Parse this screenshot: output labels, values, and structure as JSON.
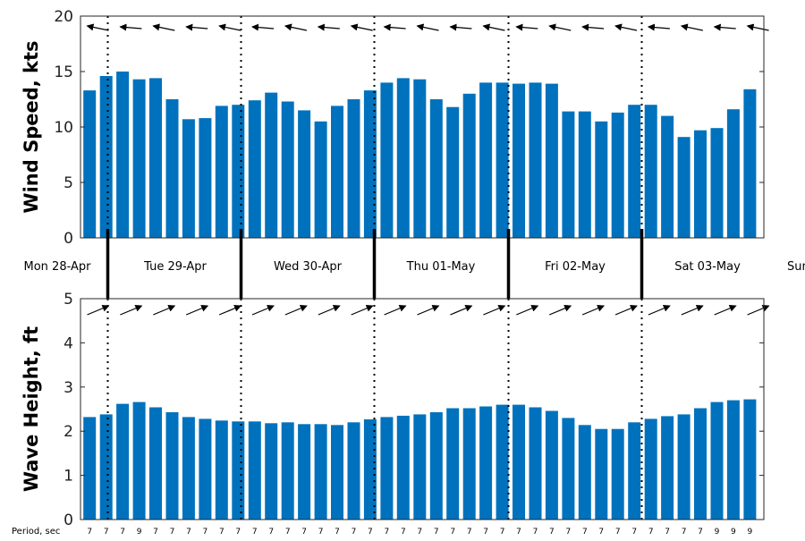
{
  "day_labels": [
    "Mon 28-Apr",
    "Tue 29-Apr",
    "Wed 30-Apr",
    "Thu 01-May",
    "Fri 02-May",
    "Sat 03-May",
    "Sun"
  ],
  "period_label": "Period, sec",
  "colors": {
    "bar": "#0072BD",
    "axis": "#262626",
    "arrow": "#000000"
  },
  "chart_data": [
    {
      "type": "bar",
      "title": "",
      "ylabel": "Wind Speed, kts",
      "xlabel": "",
      "ylim": [
        0,
        20
      ],
      "yticks": [
        0,
        5,
        10,
        15,
        20
      ],
      "values": [
        13.3,
        14.6,
        15.0,
        14.3,
        14.4,
        12.5,
        10.7,
        10.8,
        11.9,
        12.0,
        12.4,
        13.1,
        12.3,
        11.5,
        10.5,
        11.9,
        12.5,
        13.3,
        14.0,
        14.4,
        14.3,
        12.5,
        11.8,
        13.0,
        14.0,
        14.0,
        13.9,
        14.0,
        13.9,
        11.4,
        11.4,
        10.5,
        11.3,
        12.0,
        12.0,
        11.0,
        9.1,
        9.7,
        9.9,
        11.6,
        13.4
      ],
      "direction_arrows": "pointing left / west-northwest",
      "grid": false
    },
    {
      "type": "bar",
      "title": "",
      "ylabel": "Wave Height, ft",
      "xlabel": "",
      "ylim": [
        0,
        5
      ],
      "yticks": [
        0,
        1,
        2,
        3,
        4,
        5
      ],
      "values": [
        2.32,
        2.38,
        2.62,
        2.66,
        2.54,
        2.43,
        2.32,
        2.28,
        2.24,
        2.22,
        2.22,
        2.18,
        2.2,
        2.16,
        2.16,
        2.14,
        2.2,
        2.27,
        2.32,
        2.35,
        2.38,
        2.43,
        2.52,
        2.52,
        2.56,
        2.6,
        2.6,
        2.54,
        2.46,
        2.3,
        2.14,
        2.05,
        2.05,
        2.2,
        2.28,
        2.34,
        2.38,
        2.52,
        2.66,
        2.7,
        2.72
      ],
      "periods": [
        "7",
        "7",
        "7",
        "9",
        "7",
        "7",
        "7",
        "7",
        "7",
        "7",
        "7",
        "7",
        "7",
        "7",
        "7",
        "7",
        "7",
        "7",
        "7",
        "7",
        "7",
        "7",
        "7",
        "7",
        "7",
        "7",
        "7",
        "7",
        "7",
        "7",
        "7",
        "7",
        "7",
        "7",
        "7",
        "7",
        "7",
        "7",
        "9",
        "9",
        "9"
      ],
      "direction_arrows": "pointing right / northeast",
      "grid": false
    }
  ]
}
